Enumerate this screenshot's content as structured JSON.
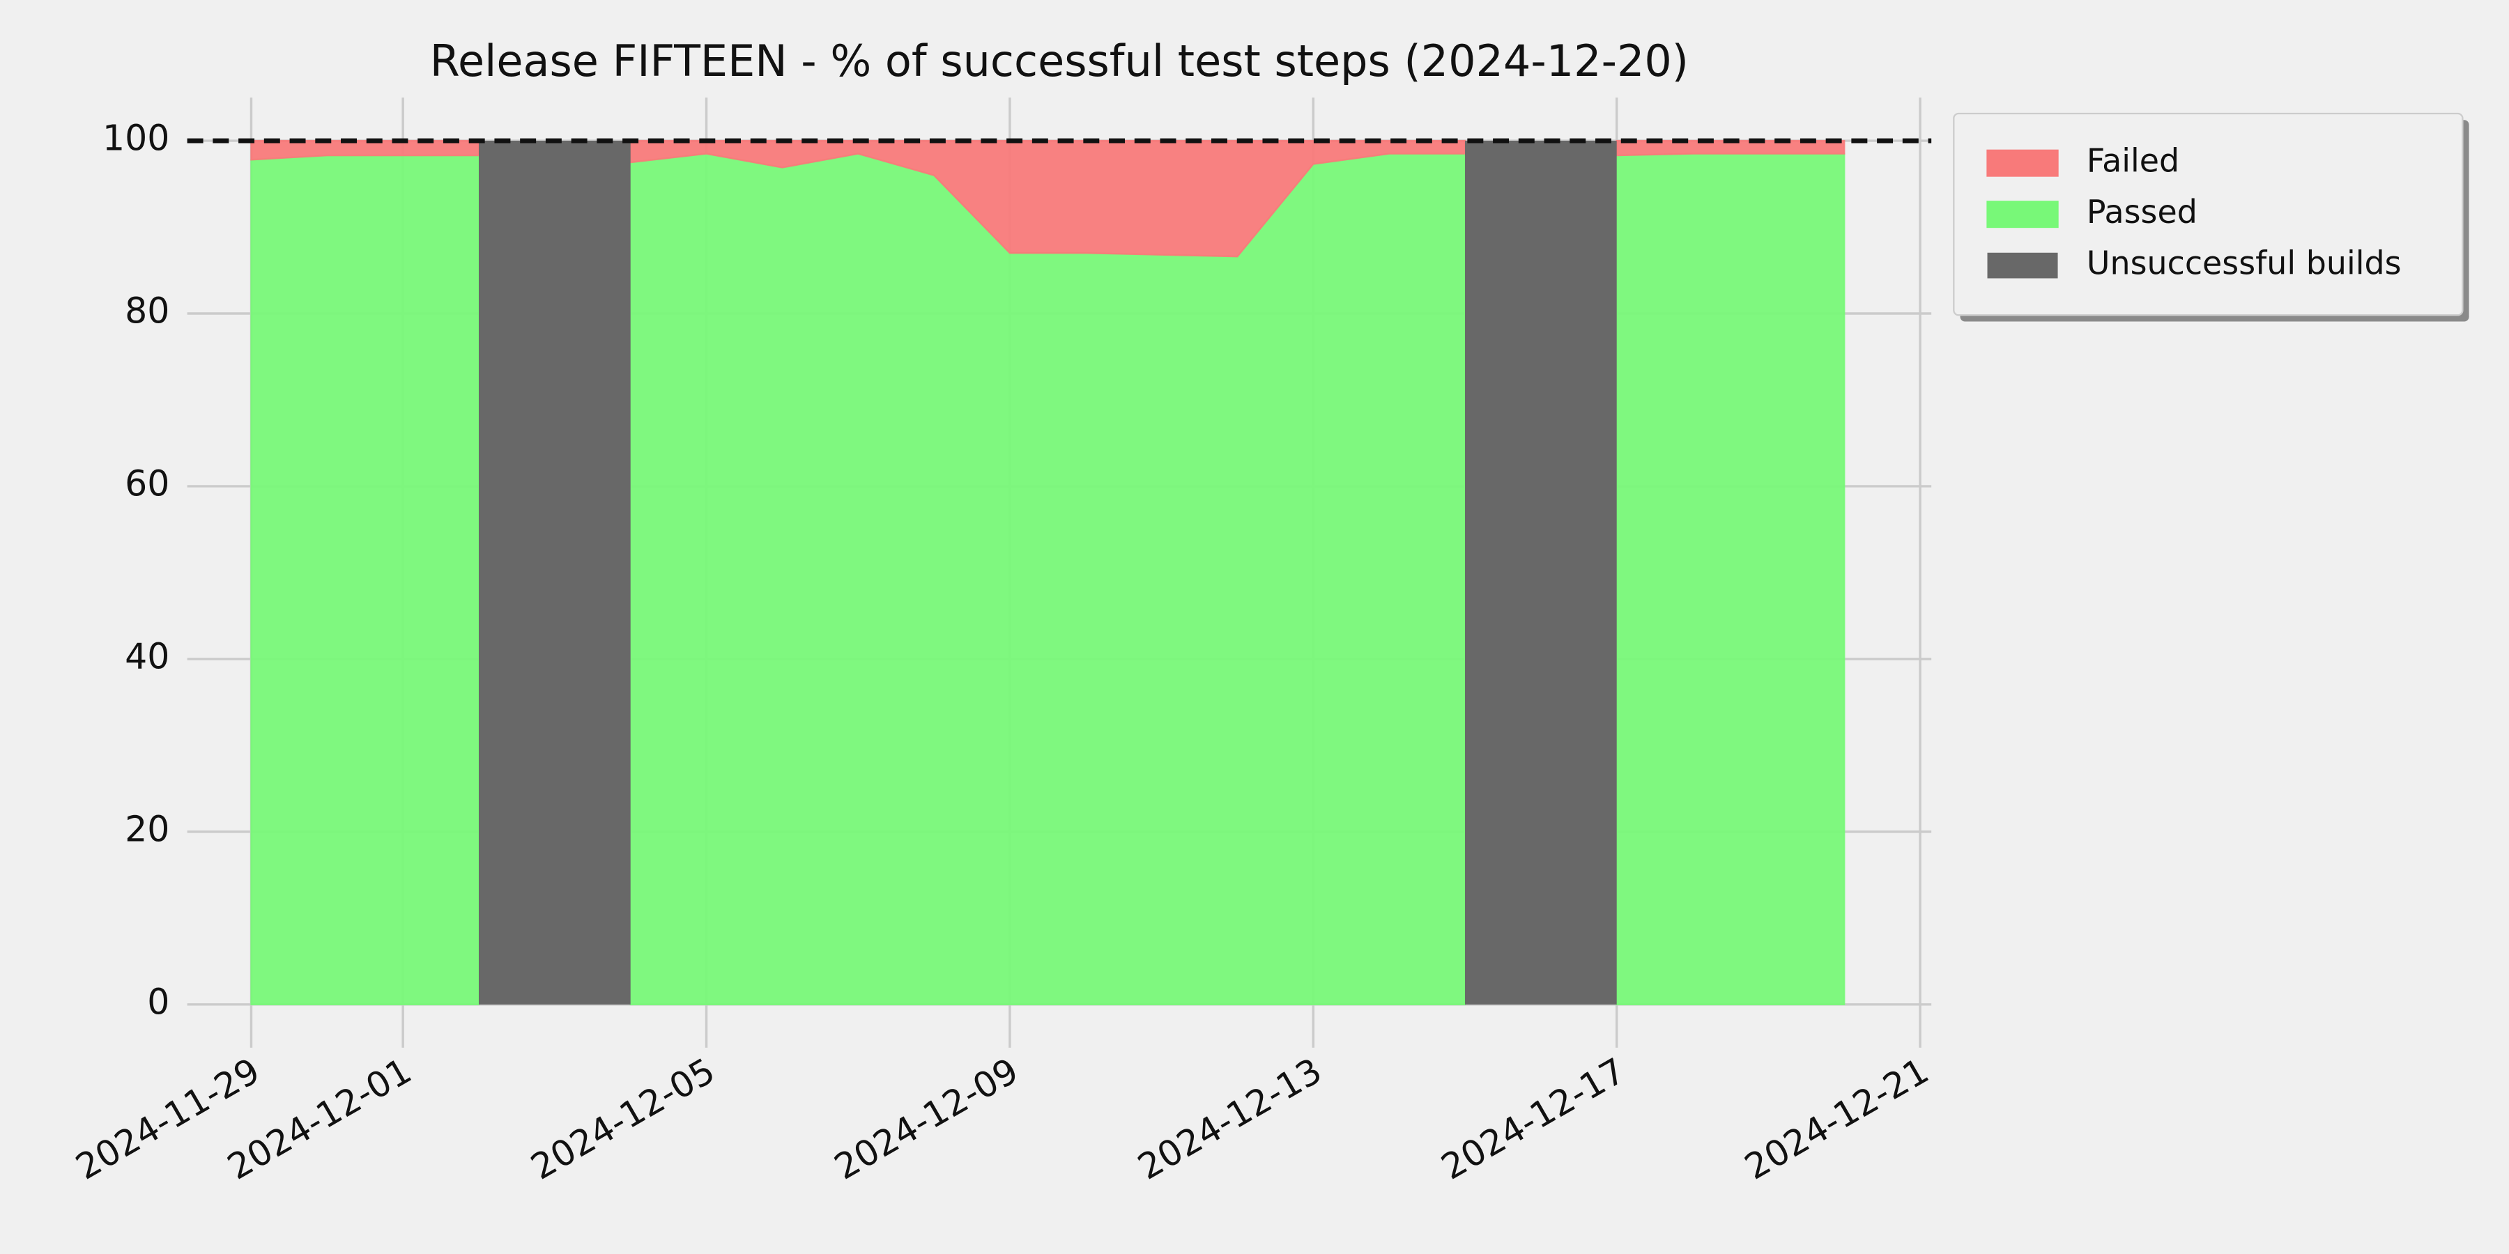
{
  "chart_data": {
    "type": "area",
    "title": "Release FIFTEEN - % of successful test steps (2024-12-20)",
    "x": [
      "2024-11-29",
      "2024-11-30",
      "2024-12-01",
      "2024-12-02",
      "2024-12-03",
      "2024-12-04",
      "2024-12-05",
      "2024-12-06",
      "2024-12-07",
      "2024-12-08",
      "2024-12-09",
      "2024-12-10",
      "2024-12-11",
      "2024-12-12",
      "2024-12-13",
      "2024-12-14",
      "2024-12-15",
      "2024-12-16",
      "2024-12-17",
      "2024-12-18",
      "2024-12-19",
      "2024-12-20"
    ],
    "series": [
      {
        "name": "Failed",
        "color": "#f87a7a",
        "stacked": true,
        "values": [
          2.2,
          1.7,
          1.7,
          1.7,
          null,
          2.5,
          1.5,
          3.1,
          1.5,
          4.0,
          13.0,
          13.0,
          13.2,
          13.4,
          2.7,
          1.5,
          1.5,
          null,
          1.7,
          1.5,
          1.5,
          1.5
        ]
      },
      {
        "name": "Passed",
        "color": "#78f878",
        "stacked": true,
        "values": [
          97.8,
          98.3,
          98.3,
          98.3,
          null,
          97.5,
          98.5,
          96.9,
          98.5,
          96.0,
          87.0,
          87.0,
          86.8,
          86.6,
          97.3,
          98.5,
          98.5,
          null,
          98.3,
          98.5,
          98.5,
          98.5
        ]
      },
      {
        "name": "Unsuccessful builds",
        "color": "#686868",
        "stacked": false,
        "values": [
          null,
          null,
          null,
          100,
          100,
          100,
          null,
          null,
          null,
          null,
          null,
          null,
          null,
          null,
          null,
          null,
          100,
          100,
          100,
          null,
          null,
          null
        ]
      }
    ],
    "xlim": [
      "2024-11-29",
      "2024-12-21"
    ],
    "xticks": [
      "2024-11-29",
      "2024-12-01",
      "2024-12-05",
      "2024-12-09",
      "2024-12-13",
      "2024-12-17",
      "2024-12-21"
    ],
    "ylim": [
      -5,
      105
    ],
    "yticks": [
      0,
      20,
      40,
      60,
      80,
      100
    ],
    "reference_line": 100,
    "grid": true,
    "legend": "outside upper right"
  }
}
